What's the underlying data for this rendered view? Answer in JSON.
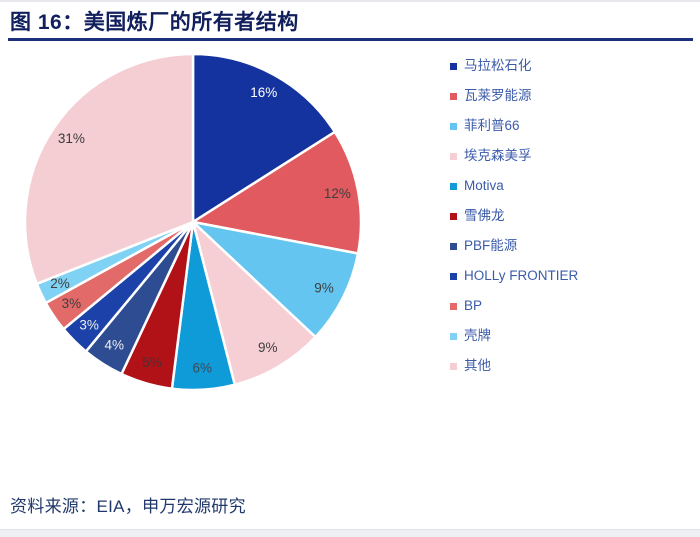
{
  "header": {
    "title": "图 16：美国炼厂的所有者结构"
  },
  "footer": {
    "source": "资料来源：EIA，申万宏源研究"
  },
  "colors": {
    "title_text": "#111f5c",
    "title_underline": "#1b2f7d",
    "legend_text": "#3b5ba9",
    "source_text": "#21386b",
    "slice_border": "#ffffff",
    "background": "#ffffff"
  },
  "chart_data": {
    "type": "pie",
    "title": "美国炼厂的所有者结构",
    "start_angle_deg": 0,
    "direction": "clockwise",
    "legend_position": "right",
    "data_label_format": "percent",
    "slices": [
      {
        "label": "马拉松石化",
        "value": 16,
        "pct_label": "16%",
        "color": "#14339e",
        "label_color": "#ffffff"
      },
      {
        "label": "瓦莱罗能源",
        "value": 12,
        "pct_label": "12%",
        "color": "#e15a5f",
        "label_color": "#3f3f3f"
      },
      {
        "label": "菲利普66",
        "value": 9,
        "pct_label": "9%",
        "color": "#63c5f0",
        "label_color": "#3f3f3f"
      },
      {
        "label": "埃克森美孚",
        "value": 9,
        "pct_label": "9%",
        "color": "#f6cfd5",
        "label_color": "#3f3f3f"
      },
      {
        "label": "Motiva",
        "value": 6,
        "pct_label": "6%",
        "color": "#0f9bd7",
        "label_color": "#3f4a55"
      },
      {
        "label": "雪佛龙",
        "value": 5,
        "pct_label": "5%",
        "color": "#b11218",
        "label_color": "#4a2f31"
      },
      {
        "label": "PBF能源",
        "value": 4,
        "pct_label": "4%",
        "color": "#2e4c92",
        "label_color": "#edeef2"
      },
      {
        "label": "HOLLy FRONTIER",
        "value": 3,
        "pct_label": "3%",
        "color": "#1c41a8",
        "label_color": "#edeef2"
      },
      {
        "label": "BP",
        "value": 3,
        "pct_label": "3%",
        "color": "#e26a69",
        "label_color": "#3f3f3f"
      },
      {
        "label": "壳牌",
        "value": 2,
        "pct_label": "2%",
        "color": "#7fd2f3",
        "label_color": "#3f3f3f"
      },
      {
        "label": "其他",
        "value": 31,
        "pct_label": "31%",
        "color": "#f5ced4",
        "label_color": "#3a3a3a"
      }
    ]
  }
}
